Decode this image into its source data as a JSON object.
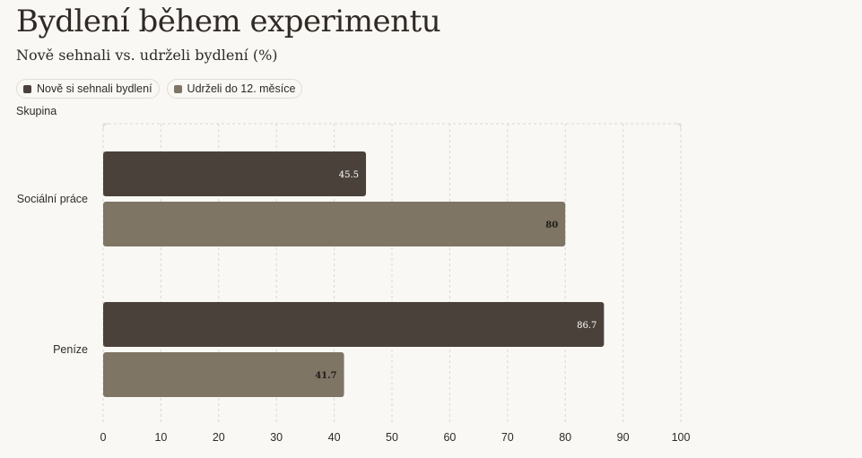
{
  "title": "Bydlení během experimentu",
  "subtitle": "Nově sehnali vs. udrželi bydlení (%)",
  "legend": [
    {
      "label": "Nově si sehnali bydlení",
      "color": "#4a413a"
    },
    {
      "label": "Udrželi do 12. měsíce",
      "color": "#7f7565"
    }
  ],
  "chart_data": {
    "type": "bar",
    "orientation": "horizontal",
    "title": "Bydlení během experimentu",
    "subtitle": "Nově sehnali vs. udrželi bydlení (%)",
    "ylabel": "Skupina",
    "xlabel": "",
    "categories": [
      "Sociální práce",
      "Peníze"
    ],
    "series": [
      {
        "name": "Nově si sehnali bydlení",
        "values": [
          45.5,
          86.7
        ],
        "color": "#4a413a",
        "label_color": "#ffffff"
      },
      {
        "name": "Udrželi do 12. měsíce",
        "values": [
          80,
          41.7
        ],
        "color": "#7f7565",
        "label_color": "#1f1b18"
      }
    ],
    "xlim": [
      0,
      100
    ],
    "xticks": [
      0,
      10,
      20,
      30,
      40,
      50,
      60,
      70,
      80,
      90,
      100
    ],
    "grid": true,
    "legend_position": "top-left"
  }
}
